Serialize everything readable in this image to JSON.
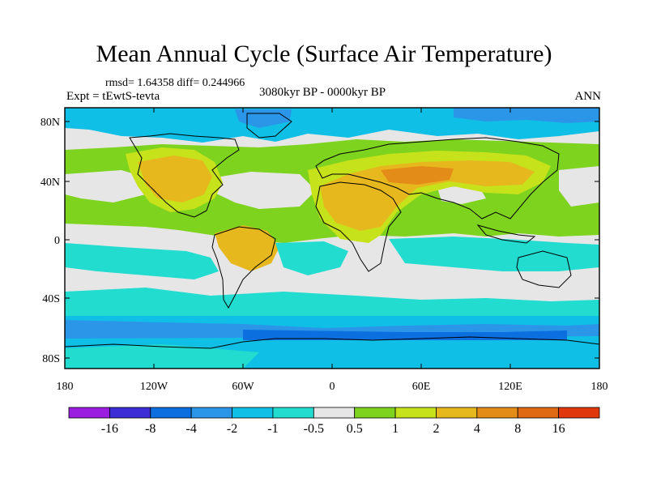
{
  "title": "Mean Annual Cycle (Surface Air Temperature)",
  "stats": "rmsd= 1.64358 diff= 0.244966",
  "experiment": "Expt = tEwtS-tevta",
  "period": "3080kyr BP - 0000kyr BP",
  "season": "ANN",
  "axes": {
    "lat_ticks": [
      "80N",
      "40N",
      "0",
      "40S",
      "80S"
    ],
    "lon_ticks": [
      "180",
      "120W",
      "60W",
      "0",
      "60E",
      "120E",
      "180"
    ]
  },
  "colorbar": {
    "labels": [
      "-16",
      "-8",
      "-4",
      "-2",
      "-1",
      "-0.5",
      "0.5",
      "1",
      "2",
      "4",
      "8",
      "16"
    ],
    "colors": [
      "#9a1de0",
      "#3c2dd6",
      "#0b6fe0",
      "#2b96e8",
      "#0fbfe6",
      "#22dcd0",
      "#e6e6e6",
      "#7ed31e",
      "#c6e21a",
      "#e6b81e",
      "#e38c18",
      "#e06a14",
      "#e0380c"
    ]
  },
  "palette": {
    "neutral": "#e6e6e6",
    "pos_light": "#7ed31e",
    "pos_mid": "#c6e21a",
    "pos_high": "#e6b81e",
    "pos_strong": "#e38c18",
    "neg_light": "#22dcd0",
    "neg_mid": "#0fbfe6",
    "neg_strong": "#2b96e8",
    "neg_deep": "#0b6fe0",
    "neg_extreme": "#3c2dd6"
  }
}
